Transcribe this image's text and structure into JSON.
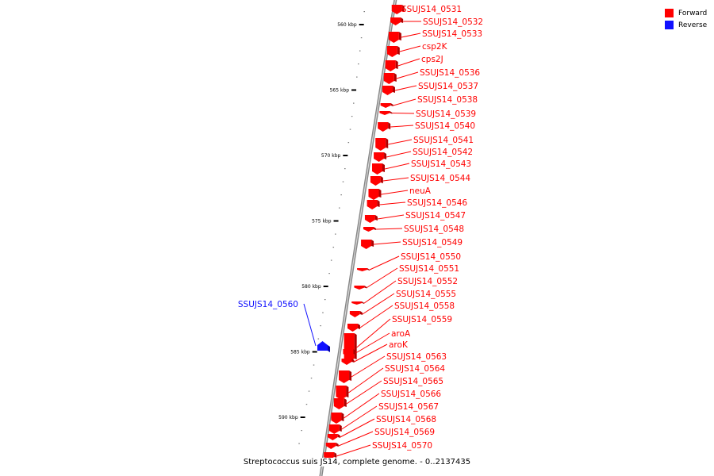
{
  "legend": {
    "forward_label": "Forward",
    "reverse_label": "Reverse",
    "forward_color": "#ff0000",
    "reverse_color": "#1010ff"
  },
  "caption": "Streptococcus suis JS14, complete genome. - 0..2137435",
  "scale_ticks": [
    {
      "label": "560 kbp",
      "kbp": 560
    },
    {
      "label": "565 kbp",
      "kbp": 565
    },
    {
      "label": "570 kbp",
      "kbp": 570
    },
    {
      "label": "575 kbp",
      "kbp": 575
    },
    {
      "label": "580 kbp",
      "kbp": 580
    },
    {
      "label": "585 kbp",
      "kbp": 585
    },
    {
      "label": "590 kbp",
      "kbp": 590
    }
  ],
  "genes": [
    {
      "name": "SSUJS14_0531",
      "strand": "forward"
    },
    {
      "name": "SSUJS14_0532",
      "strand": "forward"
    },
    {
      "name": "SSUJS14_0533",
      "strand": "forward"
    },
    {
      "name": "csp2K",
      "strand": "forward"
    },
    {
      "name": "cps2J",
      "strand": "forward"
    },
    {
      "name": "SSUJS14_0536",
      "strand": "forward"
    },
    {
      "name": "SSUJS14_0537",
      "strand": "forward"
    },
    {
      "name": "SSUJS14_0538",
      "strand": "forward"
    },
    {
      "name": "SSUJS14_0539",
      "strand": "forward"
    },
    {
      "name": "SSUJS14_0540",
      "strand": "forward"
    },
    {
      "name": "SSUJS14_0541",
      "strand": "forward"
    },
    {
      "name": "SSUJS14_0542",
      "strand": "forward"
    },
    {
      "name": "SSUJS14_0543",
      "strand": "forward"
    },
    {
      "name": "SSUJS14_0544",
      "strand": "forward"
    },
    {
      "name": "neuA",
      "strand": "forward"
    },
    {
      "name": "SSUJS14_0546",
      "strand": "forward"
    },
    {
      "name": "SSUJS14_0547",
      "strand": "forward"
    },
    {
      "name": "SSUJS14_0548",
      "strand": "forward"
    },
    {
      "name": "SSUJS14_0549",
      "strand": "forward"
    },
    {
      "name": "SSUJS14_0550",
      "strand": "forward"
    },
    {
      "name": "SSUJS14_0551",
      "strand": "forward"
    },
    {
      "name": "SSUJS14_0552",
      "strand": "forward"
    },
    {
      "name": "SSUJS14_0555",
      "strand": "forward"
    },
    {
      "name": "SSUJS14_0558",
      "strand": "forward"
    },
    {
      "name": "SSUJS14_0559",
      "strand": "forward"
    },
    {
      "name": "SSUJS14_0560",
      "strand": "reverse"
    },
    {
      "name": "aroA",
      "strand": "forward"
    },
    {
      "name": "aroK",
      "strand": "forward"
    },
    {
      "name": "SSUJS14_0563",
      "strand": "forward"
    },
    {
      "name": "SSUJS14_0564",
      "strand": "forward"
    },
    {
      "name": "SSUJS14_0565",
      "strand": "forward"
    },
    {
      "name": "SSUJS14_0566",
      "strand": "forward"
    },
    {
      "name": "SSUJS14_0567",
      "strand": "forward"
    },
    {
      "name": "SSUJS14_0568",
      "strand": "forward"
    },
    {
      "name": "SSUJS14_0569",
      "strand": "forward"
    },
    {
      "name": "SSUJS14_0570",
      "strand": "forward"
    }
  ]
}
